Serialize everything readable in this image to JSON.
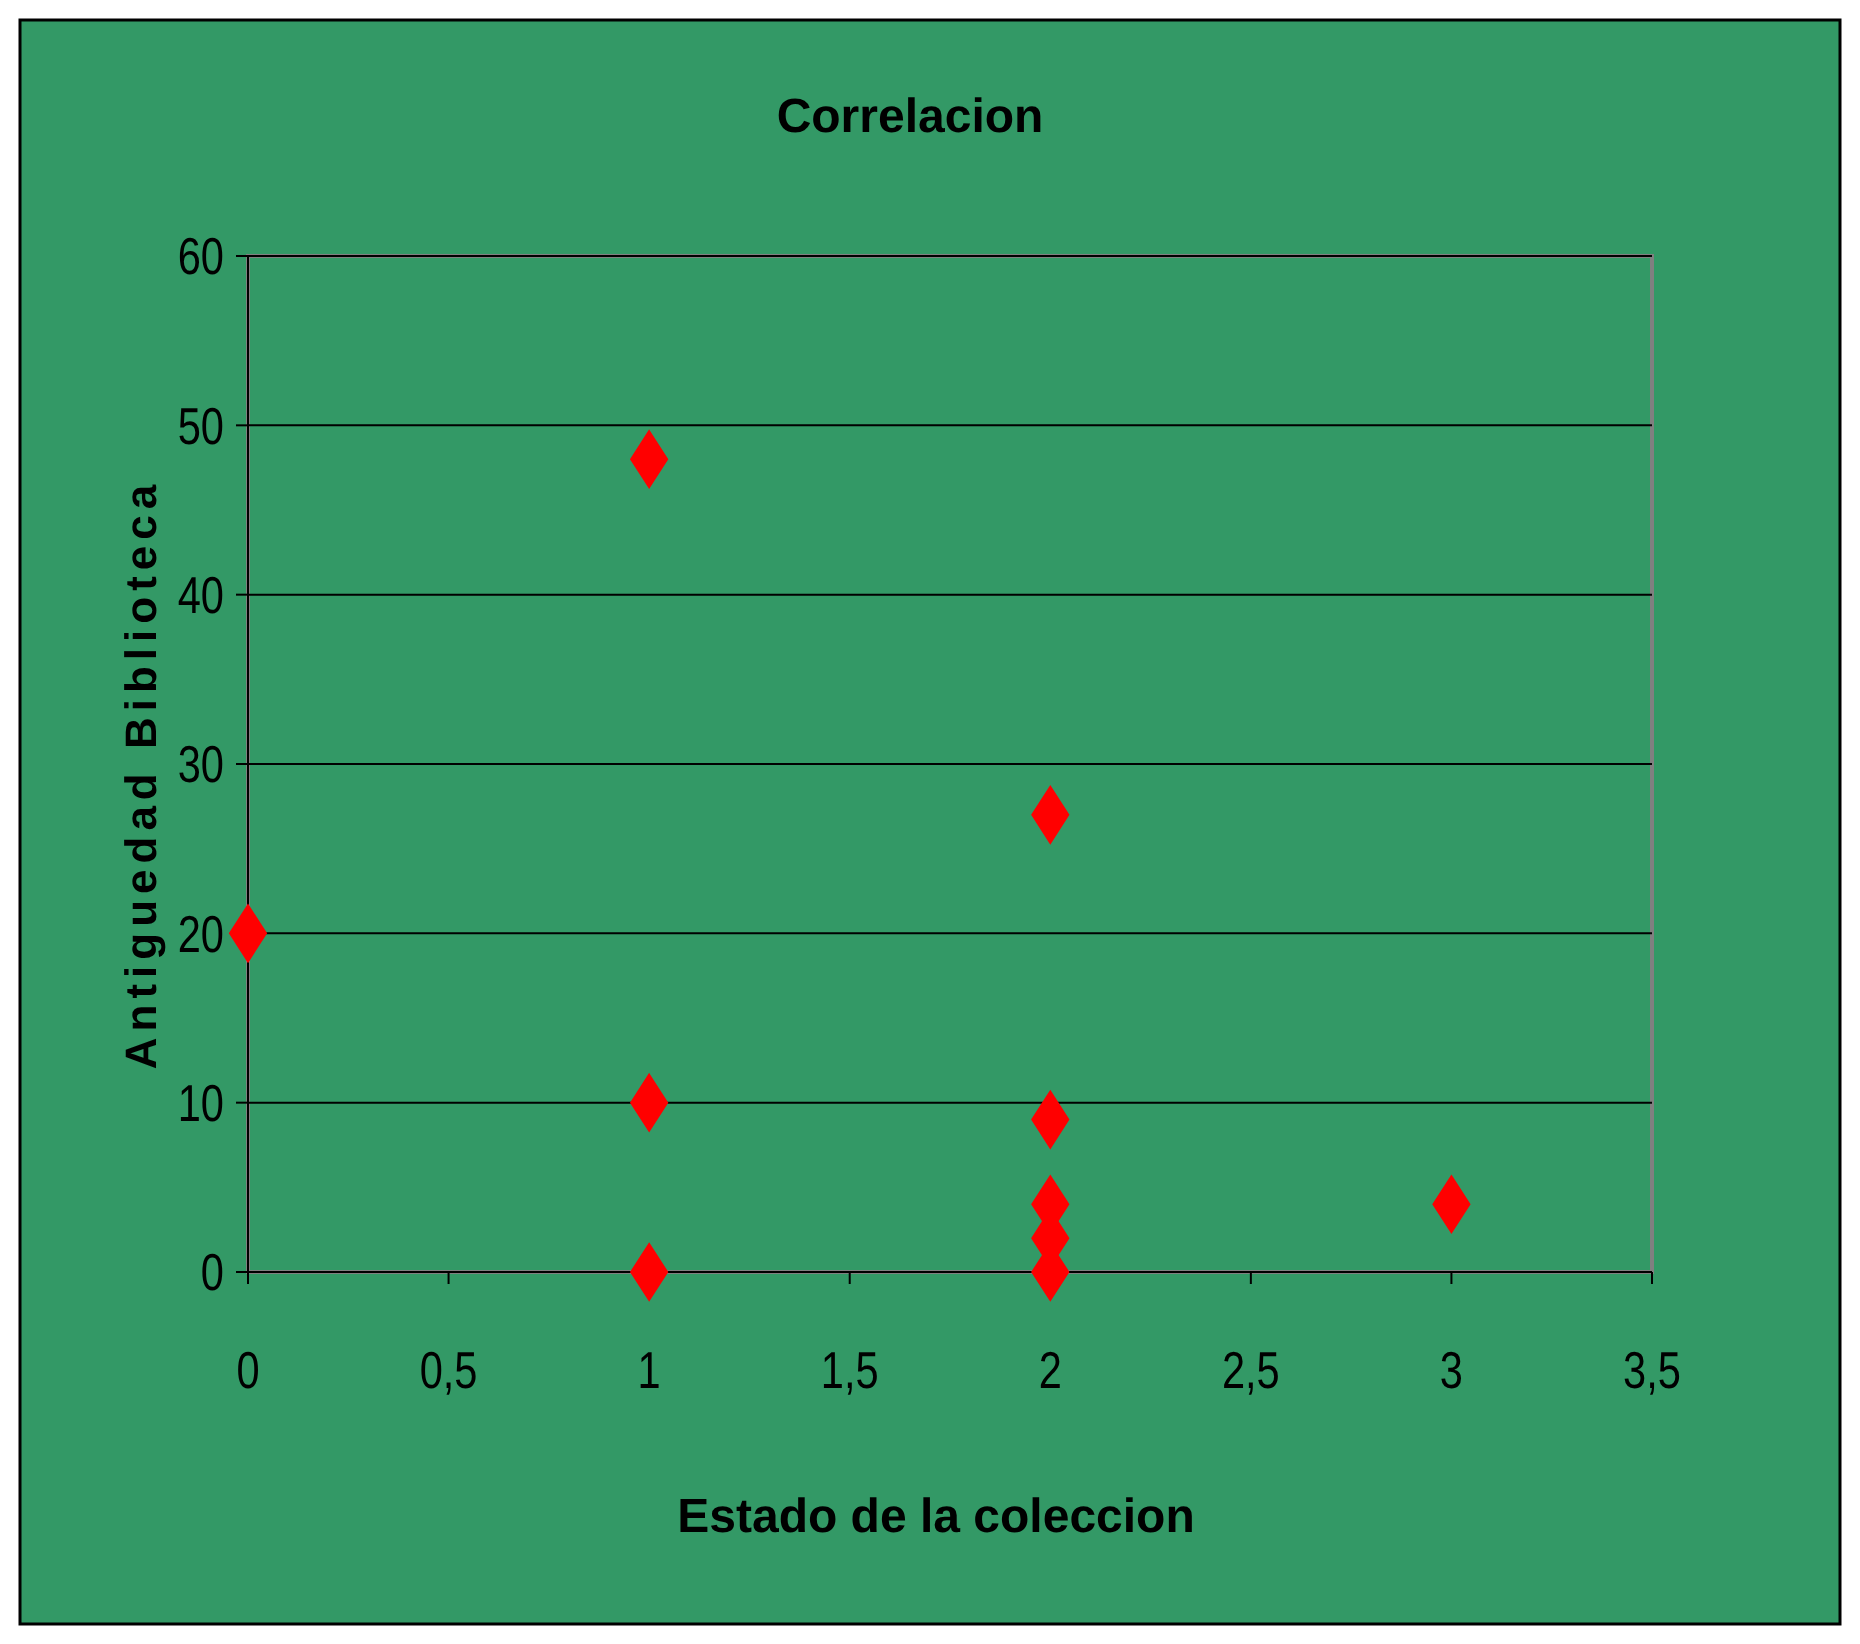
{
  "chart_data": {
    "type": "scatter",
    "title": "Correlacion",
    "xlabel": "Estado de la coleccion",
    "ylabel": "Antiguedad Biblioteca",
    "x": [
      0,
      1,
      1,
      1,
      2,
      2,
      2,
      2,
      2,
      3
    ],
    "series": [
      {
        "color": "#ff0000",
        "values": [
          20,
          48,
          10,
          0,
          27,
          9,
          4,
          2,
          0,
          4
        ]
      }
    ],
    "xlim": [
      0,
      3.5
    ],
    "xticks": [
      0,
      {
        "value": 0.5,
        "label": "0,5"
      },
      1,
      {
        "value": 1.5,
        "label": "1,5"
      },
      2,
      {
        "value": 2.5,
        "label": "2,5"
      },
      3,
      {
        "value": 3.5,
        "label": "3,5"
      }
    ],
    "ylim": [
      0,
      60
    ],
    "yticks": [
      0,
      10,
      20,
      30,
      40,
      50,
      60
    ],
    "grid": "y",
    "marker": "diamond"
  }
}
